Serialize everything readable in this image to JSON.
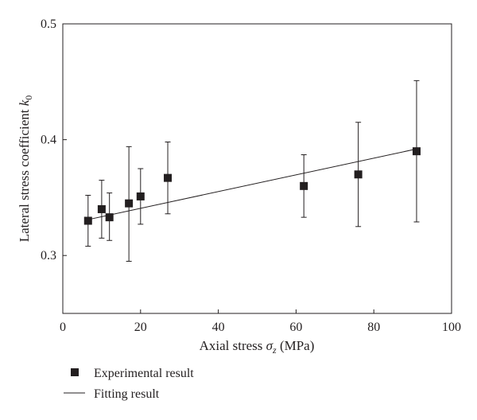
{
  "chart_data": {
    "type": "scatter",
    "xlabel": "Axial stress σ_z (MPa)",
    "ylabel": "Lateral stress coefficient k_0",
    "xlim": [
      0,
      100
    ],
    "ylim": [
      0.25,
      0.5
    ],
    "x_ticks": [
      "0",
      "20",
      "40",
      "60",
      "80",
      "100"
    ],
    "y_ticks": [
      "0.3",
      "0.4",
      "0.5"
    ],
    "grid": false,
    "legend_position": "bottom-left",
    "series": [
      {
        "name": "Experimental result",
        "kind": "scatter-errorbar",
        "marker": "square",
        "color": "#231f20",
        "points": [
          {
            "x": 6.5,
            "y": 0.33,
            "yerr_low": 0.308,
            "yerr_high": 0.352
          },
          {
            "x": 10.0,
            "y": 0.34,
            "yerr_low": 0.315,
            "yerr_high": 0.365
          },
          {
            "x": 12.0,
            "y": 0.333,
            "yerr_low": 0.313,
            "yerr_high": 0.354
          },
          {
            "x": 17.0,
            "y": 0.345,
            "yerr_low": 0.295,
            "yerr_high": 0.394
          },
          {
            "x": 20.0,
            "y": 0.351,
            "yerr_low": 0.327,
            "yerr_high": 0.375
          },
          {
            "x": 27.0,
            "y": 0.367,
            "yerr_low": 0.336,
            "yerr_high": 0.398
          },
          {
            "x": 62.0,
            "y": 0.36,
            "yerr_low": 0.333,
            "yerr_high": 0.387
          },
          {
            "x": 76.0,
            "y": 0.37,
            "yerr_low": 0.325,
            "yerr_high": 0.415
          },
          {
            "x": 91.0,
            "y": 0.39,
            "yerr_low": 0.329,
            "yerr_high": 0.451
          }
        ]
      },
      {
        "name": "Fitting result",
        "kind": "line",
        "color": "#231f20",
        "x": [
          6.5,
          91.0
        ],
        "y": [
          0.331,
          0.392
        ]
      }
    ]
  }
}
